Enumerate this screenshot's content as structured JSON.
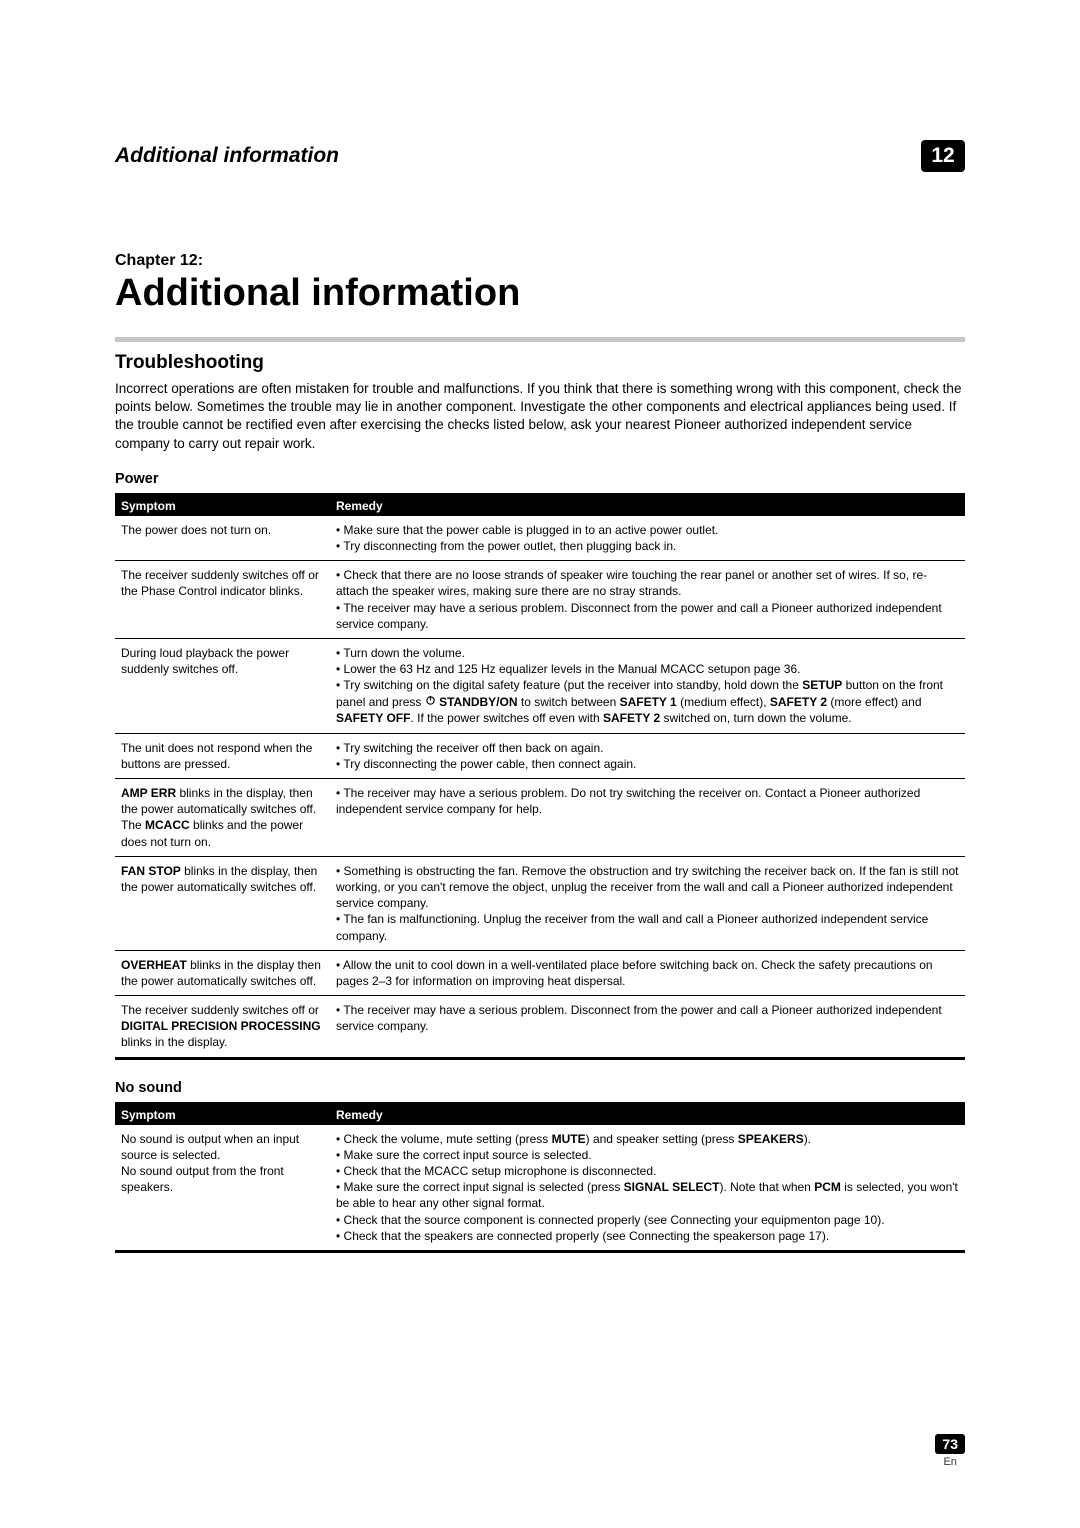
{
  "header": {
    "running_title": "Additional information",
    "chapter_number": "12"
  },
  "chapter": {
    "label": "Chapter 12:",
    "title": "Additional information"
  },
  "section": {
    "title": "Troubleshooting",
    "intro": "Incorrect operations are often mistaken for trouble and malfunctions. If you think that there is something wrong with this component, check the points below. Sometimes the trouble may lie in another component. Investigate the other components and electrical appliances being used. If the trouble cannot be rectified even after exercising the checks listed below, ask your nearest Pioneer authorized independent service company to carry out repair work."
  },
  "tables": {
    "symptom_header": "Symptom",
    "remedy_header": "Remedy",
    "power": {
      "title": "Power",
      "rows": [
        {
          "symptom_html": "The power does not turn on.",
          "remedy_html": "• Make sure that the power cable is plugged in to an active power outlet.<br>• Try disconnecting from the power outlet, then plugging back in."
        },
        {
          "symptom_html": "The receiver suddenly switches off or the Phase Control indicator blinks.",
          "remedy_html": "• Check that there are no loose strands of speaker wire touching the rear panel or another set of wires. If so, re-attach the speaker wires, making sure there are no stray strands.<br>• The receiver may have a serious problem. Disconnect from the power and call a Pioneer authorized independent service company."
        },
        {
          "symptom_html": "During loud playback the power suddenly switches off.",
          "remedy_html": "• Turn down the volume.<br>• Lower the 63 Hz and 125 Hz equalizer levels in the Manual MCACC setupon page 36.<br>• Try switching on the digital safety feature (put the receiver into standby, hold down the <b>SETUP</b> button on the front panel and press <span class=\"power-icon\"><svg width=\"11\" height=\"11\" viewBox=\"0 0 24 24\"><circle cx=\"12\" cy=\"12\" r=\"8\" fill=\"none\" stroke=\"#000\" stroke-width=\"2.5\"/><line x1=\"12\" y1=\"2\" x2=\"12\" y2=\"12\" stroke=\"#000\" stroke-width=\"2.5\"/></svg></span> <b>STANDBY/ON</b> to switch between <b>SAFETY 1</b> (medium effect), <b>SAFETY 2</b> (more effect) and <b>SAFETY OFF</b>. If the power switches off even with <b>SAFETY 2</b> switched on, turn down the volume."
        },
        {
          "symptom_html": "The unit does not respond when the buttons are pressed.",
          "remedy_html": "• Try switching the receiver off then back on again.<br>• Try disconnecting the power cable, then connect again."
        },
        {
          "symptom_html": "<b>AMP ERR</b> blinks in the display, then the power automatically switches off. The <b>MCACC</b> blinks and the power does not turn on.",
          "remedy_html": "• The receiver may have a serious problem. Do not try switching the receiver on. Contact a Pioneer authorized independent service company for help."
        },
        {
          "symptom_html": "<b>FAN STOP</b> blinks in the display, then the power automatically switches off.",
          "remedy_html": "• Something is obstructing the fan. Remove the obstruction and try switching the receiver back on. If the fan is still not working, or you can't remove the object, unplug the receiver from the wall and call a Pioneer authorized independent service company.<br>• The fan is malfunctioning. Unplug the receiver from the wall and call a Pioneer authorized independent service company."
        },
        {
          "symptom_html": "<b>OVERHEAT</b> blinks in the display then the power automatically switches off.",
          "remedy_html": "• Allow the unit to cool down in a well-ventilated place before switching back on. Check the safety precautions on pages 2–3 for information on improving heat dispersal."
        },
        {
          "symptom_html": "The receiver suddenly switches off or <b>DIGITAL PRECISION PROCESSING</b> blinks in the display.",
          "remedy_html": "• The receiver may have a serious problem. Disconnect from the power and call a Pioneer authorized independent service company."
        }
      ]
    },
    "nosound": {
      "title": "No sound",
      "rows": [
        {
          "symptom_html": "No sound is output when an input source is selected.<br>No sound output from the front speakers.",
          "remedy_html": "• Check the volume, mute setting (press <b>MUTE</b>) and speaker setting (press <b>SPEAKERS</b>).<br>• Make sure the correct input source is selected.<br>• Check that the MCACC setup microphone is disconnected.<br>• Make sure the correct input signal is selected (press <b>SIGNAL SELECT</b>). Note that when <b>PCM</b> is selected, you won't be able to hear any other signal format.<br>• Check that the source component is connected properly (see Connecting your equipmenton page 10).<br>• Check that the speakers are connected properly (see Connecting the speakerson page 17)."
        }
      ]
    }
  },
  "footer": {
    "page_number": "73",
    "lang": "En"
  }
}
